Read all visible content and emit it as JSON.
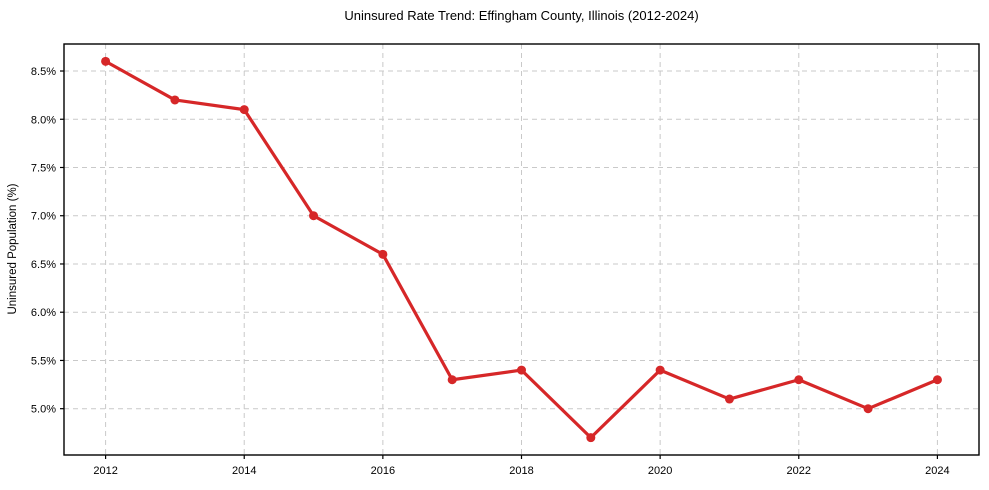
{
  "chart_data": {
    "type": "line",
    "title": "Uninsured Rate Trend: Effingham County, Illinois (2012-2024)",
    "ylabel": "Uninsured Population (%)",
    "xlabel": "",
    "x": [
      2012,
      2013,
      2014,
      2015,
      2016,
      2017,
      2018,
      2019,
      2020,
      2021,
      2022,
      2023,
      2024
    ],
    "values": [
      8.6,
      8.2,
      8.1,
      7.0,
      6.6,
      5.3,
      5.4,
      4.7,
      5.4,
      5.1,
      5.3,
      5.0,
      5.3
    ],
    "xticks": [
      2012,
      2014,
      2016,
      2018,
      2020,
      2022,
      2024
    ],
    "yticks": [
      5.0,
      5.5,
      6.0,
      6.5,
      7.0,
      7.5,
      8.0,
      8.5
    ],
    "ytick_suffix": "%",
    "xlim": [
      2011.4,
      2024.6
    ],
    "ylim": [
      4.52,
      8.78
    ],
    "grid": true,
    "legend_position": "none",
    "line_color": "#d62728",
    "marker": "circle",
    "grid_color": "#c9c9c9",
    "spine_color": "#000000",
    "background_color": "#ffffff"
  }
}
